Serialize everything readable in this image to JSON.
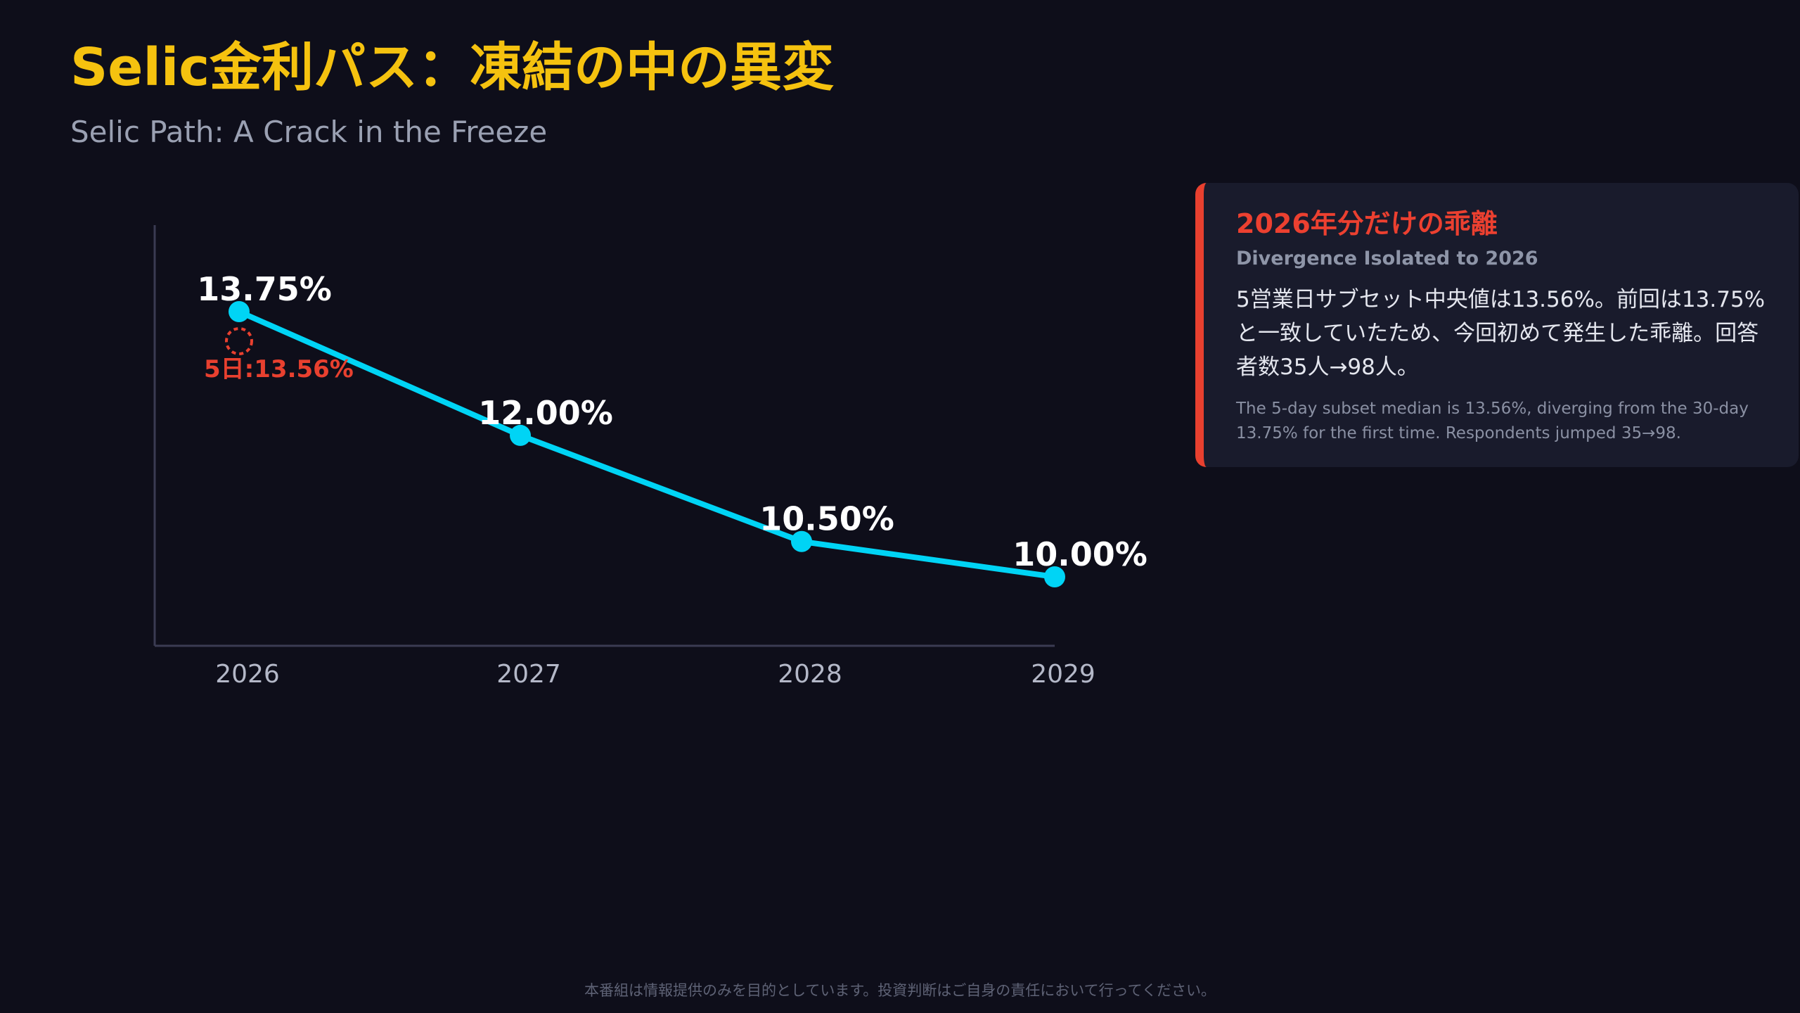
{
  "header": {
    "title": "Selic金利パス：凍結の中の異変",
    "subtitle": "Selic Path: A Crack in the Freeze"
  },
  "chart_data": {
    "type": "line",
    "categories": [
      "2026",
      "2027",
      "2028",
      "2029"
    ],
    "series": [
      {
        "values": [
          13.75,
          12.0,
          10.5,
          10.0
        ],
        "labels": [
          "13.75%",
          "12.00%",
          "10.50%",
          "10.00%"
        ],
        "color": "#00d4f5"
      }
    ],
    "annotation": {
      "category": "2026",
      "value": 13.56,
      "label": "5日:13.56%",
      "color": "#e8402f"
    },
    "ylim": [
      9.0,
      15.0
    ],
    "grid": false,
    "legend": "none"
  },
  "callout": {
    "title": "2026年分だけの乖離",
    "subtitle": "Divergence Isolated to 2026",
    "body": "5営業日サブセット中央値は13.56%。前回は13.75%と一致していたため、今回初めて発生した乖離。回答者数35人→98人。",
    "note": "The 5-day subset median is 13.56%, diverging from the 30-day 13.75% for the first time. Respondents jumped 35→98.",
    "accent_color": "#e8402f"
  },
  "footer": {
    "disclaimer": "本番組は情報提供のみを目的としています。投資判断はご自身の責任において行ってください。"
  }
}
